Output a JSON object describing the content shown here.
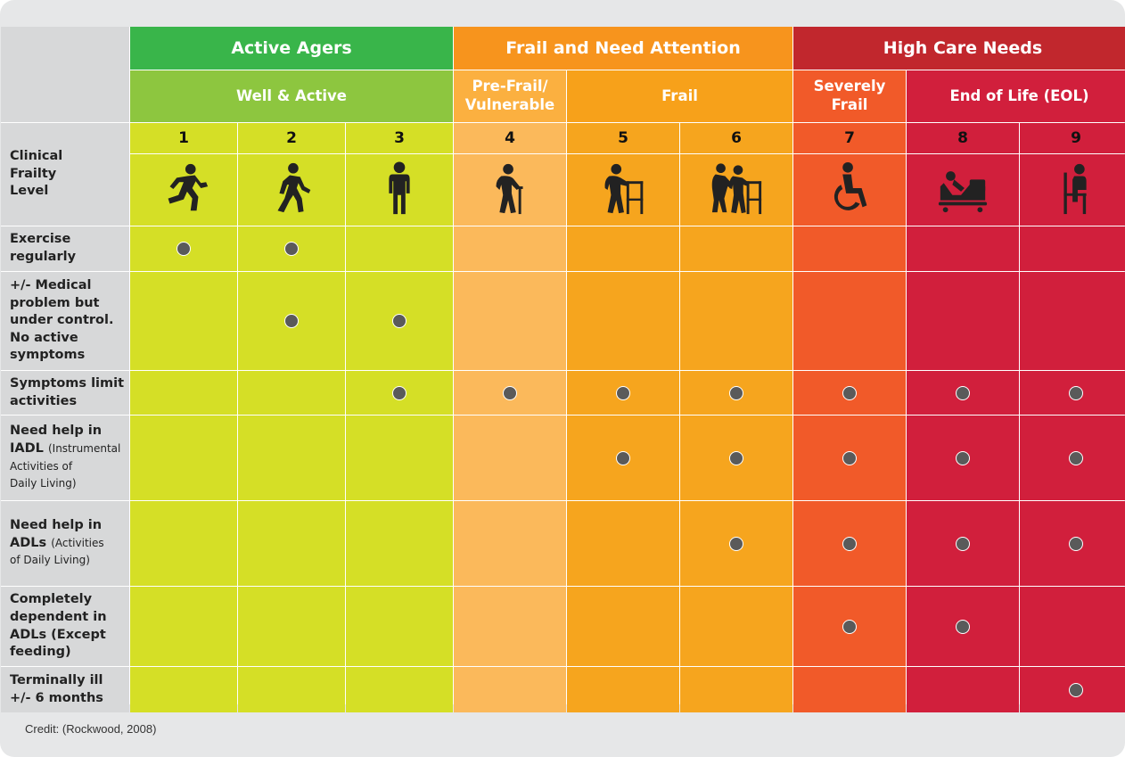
{
  "headers": {
    "groups": [
      {
        "label": "Active Agers",
        "color": "#39b54a"
      },
      {
        "label": "Frail and Need Attention",
        "color": "#f7941d"
      },
      {
        "label": "High Care Needs",
        "color": "#c1272d"
      }
    ],
    "subgroups": [
      {
        "label": "Well & Active",
        "color": "#8dc63f"
      },
      {
        "label": "Pre-Frail/\nVulnerable",
        "color": "#fbb040"
      },
      {
        "label": "Frail",
        "color": "#f7a11a"
      },
      {
        "label": "Severely\nFrail",
        "color": "#f15a29"
      },
      {
        "label": "End of Life (EOL)",
        "color": "#d11f3c"
      }
    ]
  },
  "levels": [
    {
      "number": "1",
      "icon": "running-person-icon"
    },
    {
      "number": "2",
      "icon": "walking-person-icon"
    },
    {
      "number": "3",
      "icon": "standing-person-icon"
    },
    {
      "number": "4",
      "icon": "person-with-cane-icon"
    },
    {
      "number": "5",
      "icon": "person-with-walker-icon"
    },
    {
      "number": "6",
      "icon": "assisted-person-with-walker-icon"
    },
    {
      "number": "7",
      "icon": "wheelchair-icon"
    },
    {
      "number": "8",
      "icon": "person-in-bed-icon"
    },
    {
      "number": "9",
      "icon": "person-in-chair-icon"
    }
  ],
  "column_colors": [
    "#d5df26",
    "#d5df26",
    "#d5df26",
    "#fbb95b",
    "#f6a51e",
    "#f6a51e",
    "#f15a29",
    "#d11f3c",
    "#d11f3c"
  ],
  "rows": [
    {
      "label": "Clinical\nFrailty\nLevel",
      "label_small": ""
    },
    {
      "label": "Exercise\nregularly",
      "label_small": "",
      "marks": [
        1,
        1,
        0,
        0,
        0,
        0,
        0,
        0,
        0
      ]
    },
    {
      "label": "+/- Medical\nproblem but\nunder control.\nNo active\nsymptoms",
      "label_small": "",
      "marks": [
        0,
        1,
        1,
        0,
        0,
        0,
        0,
        0,
        0
      ]
    },
    {
      "label": "Symptoms limit\nactivities",
      "label_small": "",
      "marks": [
        0,
        0,
        1,
        1,
        1,
        1,
        1,
        1,
        1
      ]
    },
    {
      "label": "Need help in\nIADL",
      "label_small": "(Instrumental\nActivities of\nDaily Living)",
      "marks": [
        0,
        0,
        0,
        0,
        1,
        1,
        1,
        1,
        1
      ]
    },
    {
      "label": "Need help in\nADLs",
      "label_small": "(Activities\nof Daily Living)",
      "marks": [
        0,
        0,
        0,
        0,
        0,
        1,
        1,
        1,
        1
      ]
    },
    {
      "label": "Completely\ndependent in\nADLs (Except\nfeeding)",
      "label_small": "",
      "marks": [
        0,
        0,
        0,
        0,
        0,
        0,
        1,
        1,
        0
      ]
    },
    {
      "label": "Terminally ill\n+/- 6 months",
      "label_small": "",
      "marks": [
        0,
        0,
        0,
        0,
        0,
        0,
        0,
        0,
        1
      ]
    }
  ],
  "credit": "Credit: (Rockwood, 2008)"
}
